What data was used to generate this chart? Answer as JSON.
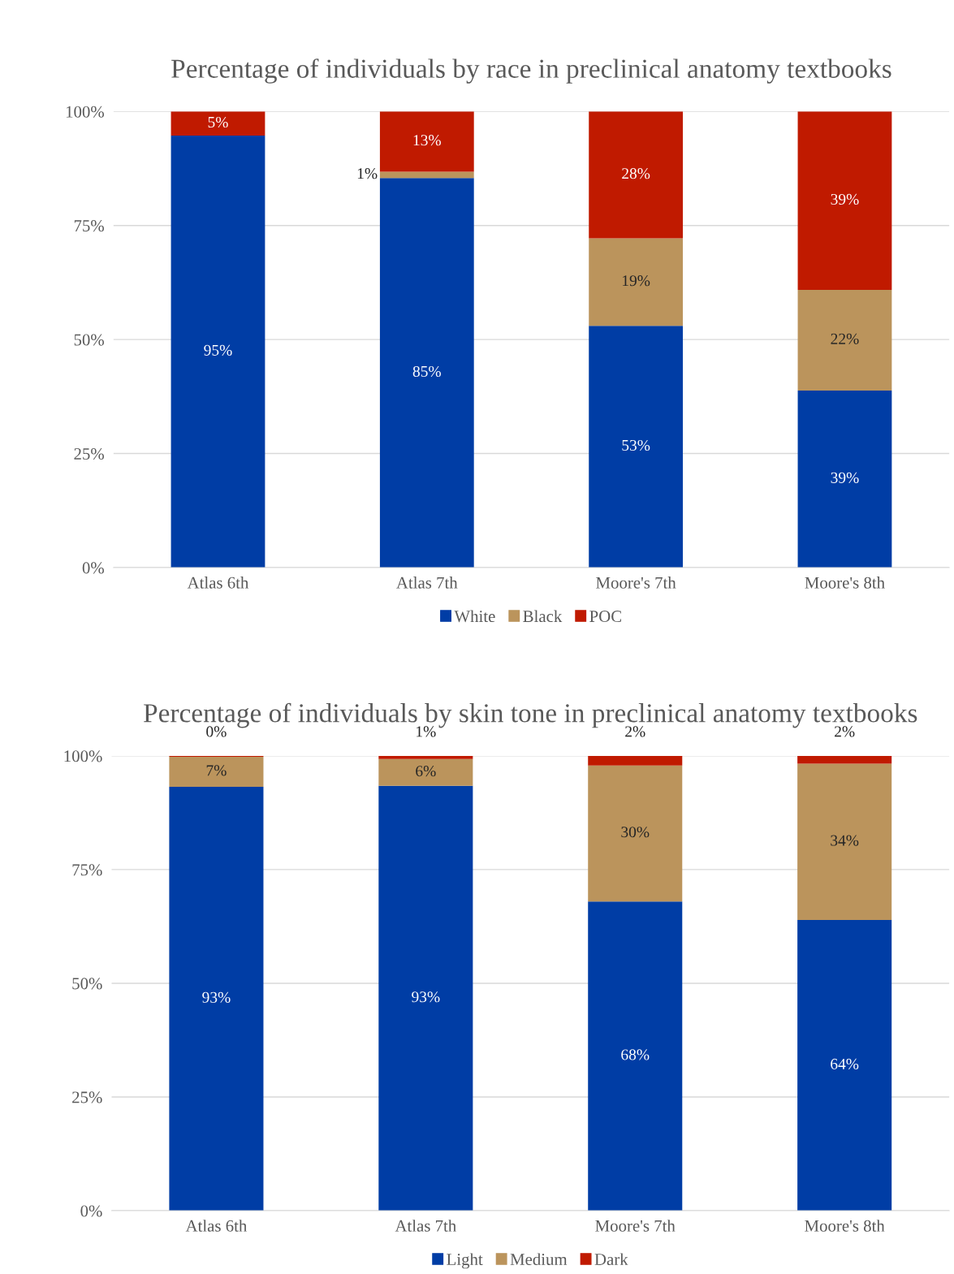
{
  "chart_data": [
    {
      "type": "bar",
      "stacked": true,
      "title": "Percentage of individuals by race in preclinical anatomy textbooks",
      "categories": [
        "Atlas 6th",
        "Atlas 7th",
        "Moore's 7th",
        "Moore's 8th"
      ],
      "series": [
        {
          "name": "White",
          "color": "#003da5",
          "values": [
            94.7,
            85.4,
            53.0,
            38.8
          ],
          "value_labels": [
            "95%",
            "85%",
            "53%",
            "39%"
          ]
        },
        {
          "name": "Black",
          "color": "#bb945c",
          "values": [
            0,
            1.4,
            19.2,
            22.1
          ],
          "value_labels": [
            null,
            "1%",
            "19%",
            "22%"
          ]
        },
        {
          "name": "POC",
          "color": "#c01a00",
          "values": [
            5.3,
            13.2,
            27.8,
            39.1
          ],
          "value_labels": [
            "5%",
            "13%",
            "28%",
            "39%"
          ]
        }
      ],
      "ylim": [
        0,
        100
      ],
      "yticks": [
        {
          "value": 0,
          "label": "0%"
        },
        {
          "value": 25,
          "label": "25%"
        },
        {
          "value": 50,
          "label": "50%"
        },
        {
          "value": 75,
          "label": "75%"
        },
        {
          "value": 100,
          "label": "100%"
        }
      ],
      "grid": "y",
      "legend": "bottom"
    },
    {
      "type": "bar",
      "stacked": true,
      "title": "Percentage of individuals by skin tone in preclinical anatomy textbooks",
      "categories": [
        "Atlas 6th",
        "Atlas 7th",
        "Moore's 7th",
        "Moore's 8th"
      ],
      "series": [
        {
          "name": "Light",
          "color": "#003da5",
          "values": [
            93.2,
            93.4,
            68.0,
            63.9
          ],
          "value_labels": [
            "93%",
            "93%",
            "68%",
            "64%"
          ]
        },
        {
          "name": "Medium",
          "color": "#bb945c",
          "values": [
            6.6,
            5.9,
            29.9,
            34.4
          ],
          "value_labels": [
            "7%",
            "6%",
            "30%",
            "34%"
          ]
        },
        {
          "name": "Dark",
          "color": "#c01a00",
          "values": [
            0.2,
            0.7,
            2.1,
            1.7
          ],
          "value_labels": [
            "0%",
            "1%",
            "2%",
            "2%"
          ]
        }
      ],
      "ylim": [
        0,
        100
      ],
      "yticks": [
        {
          "value": 0,
          "label": "0%"
        },
        {
          "value": 25,
          "label": "25%"
        },
        {
          "value": 50,
          "label": "50%"
        },
        {
          "value": 75,
          "label": "75%"
        },
        {
          "value": 100,
          "label": "100%"
        }
      ],
      "grid": "y",
      "legend": "bottom"
    }
  ]
}
